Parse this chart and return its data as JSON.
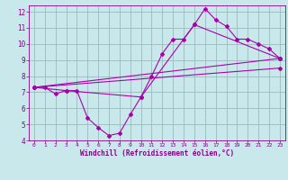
{
  "bg_color": "#c8e8ec",
  "line_color": "#aa00aa",
  "grid_color": "#99bbbb",
  "xlabel": "Windchill (Refroidissement éolien,°C)",
  "xlabel_color": "#880088",
  "tick_color": "#880088",
  "xlim": [
    -0.5,
    23.5
  ],
  "ylim": [
    4,
    12.4
  ],
  "yticks": [
    4,
    5,
    6,
    7,
    8,
    9,
    10,
    11,
    12
  ],
  "xticks": [
    0,
    1,
    2,
    3,
    4,
    5,
    6,
    7,
    8,
    9,
    10,
    11,
    12,
    13,
    14,
    15,
    16,
    17,
    18,
    19,
    20,
    21,
    22,
    23
  ],
  "series1_x": [
    0,
    1,
    2,
    3,
    4,
    5,
    6,
    7,
    8,
    9,
    10,
    11,
    12,
    13,
    14,
    15,
    16,
    17,
    18,
    19,
    20,
    21,
    22,
    23
  ],
  "series1_y": [
    7.3,
    7.3,
    6.9,
    7.1,
    7.1,
    5.4,
    4.8,
    4.3,
    4.45,
    5.6,
    6.7,
    8.0,
    9.4,
    10.3,
    10.3,
    11.2,
    12.2,
    11.5,
    11.1,
    10.3,
    10.3,
    10.0,
    9.7,
    9.1
  ],
  "series2_x": [
    0,
    3,
    10,
    15,
    23
  ],
  "series2_y": [
    7.3,
    7.1,
    6.7,
    11.2,
    9.1
  ],
  "series3_x": [
    0,
    23
  ],
  "series3_y": [
    7.3,
    9.1
  ],
  "series4_x": [
    0,
    23
  ],
  "series4_y": [
    7.3,
    8.5
  ]
}
